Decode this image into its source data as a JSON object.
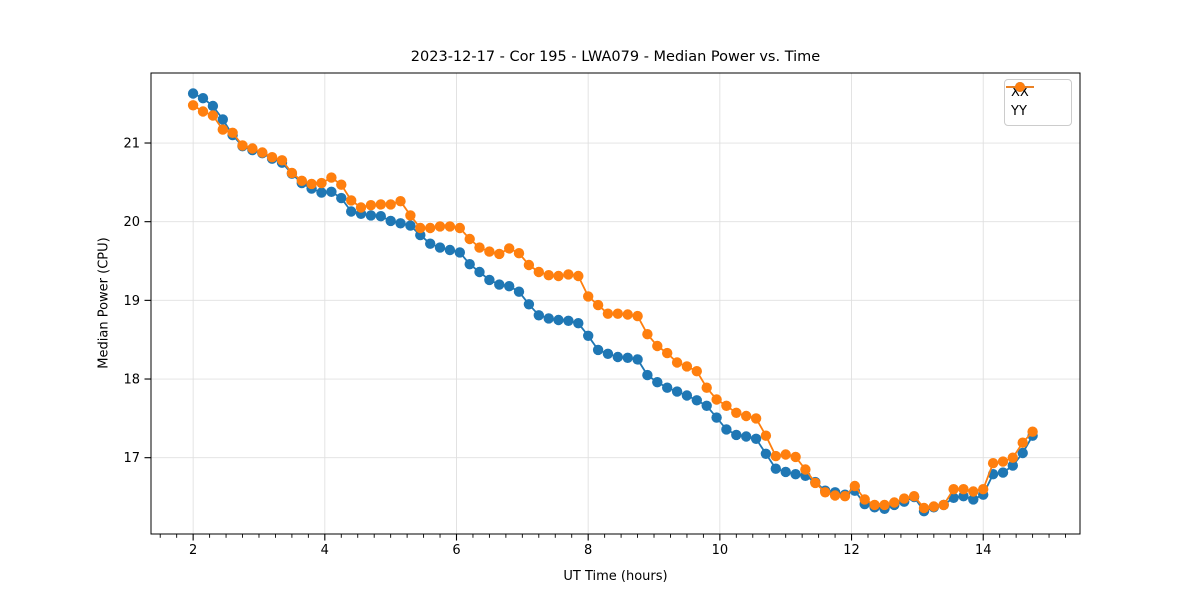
{
  "chart_data": {
    "type": "line",
    "title": "2023-12-17 - Cor 195 - LWA079 - Median Power vs. Time",
    "xlabel": "UT Time (hours)",
    "ylabel": "Median Power (CPU)",
    "xlim": [
      1.36,
      15.47
    ],
    "ylim": [
      16.03,
      21.89
    ],
    "xticks": [
      2,
      4,
      6,
      8,
      10,
      12,
      14
    ],
    "yticks": [
      17,
      18,
      19,
      20,
      21
    ],
    "x_minor_tick_step": 0.25,
    "grid": true,
    "grid_color": "#e0e0e0",
    "spine_color": "#000000",
    "legend_position": "upper right",
    "marker": "circle",
    "marker_radius": 5.2,
    "line_width": 1.8,
    "x": [
      2.0,
      2.15,
      2.3,
      2.45,
      2.6,
      2.75,
      2.9,
      3.05,
      3.2,
      3.35,
      3.5,
      3.65,
      3.8,
      3.95,
      4.1,
      4.25,
      4.4,
      4.55,
      4.7,
      4.85,
      5.0,
      5.15,
      5.3,
      5.45,
      5.6,
      5.75,
      5.9,
      6.05,
      6.2,
      6.35,
      6.5,
      6.65,
      6.8,
      6.95,
      7.1,
      7.25,
      7.4,
      7.55,
      7.7,
      7.85,
      8.0,
      8.15,
      8.3,
      8.45,
      8.6,
      8.75,
      8.9,
      9.05,
      9.2,
      9.35,
      9.5,
      9.65,
      9.8,
      9.95,
      10.1,
      10.25,
      10.4,
      10.55,
      10.7,
      10.85,
      11.0,
      11.15,
      11.3,
      11.45,
      11.6,
      11.75,
      11.9,
      12.05,
      12.2,
      12.35,
      12.5,
      12.65,
      12.8,
      12.95,
      13.1,
      13.25,
      13.4,
      13.55,
      13.7,
      13.85,
      14.0,
      14.15,
      14.3,
      14.45,
      14.6,
      14.75
    ],
    "series": [
      {
        "name": "XX",
        "color": "#1f77b4",
        "values": [
          21.63,
          21.57,
          21.47,
          21.3,
          21.1,
          20.96,
          20.91,
          20.87,
          20.8,
          20.75,
          20.61,
          20.49,
          20.42,
          20.37,
          20.38,
          20.3,
          20.13,
          20.1,
          20.08,
          20.07,
          20.01,
          19.98,
          19.95,
          19.83,
          19.72,
          19.67,
          19.64,
          19.61,
          19.46,
          19.36,
          19.26,
          19.2,
          19.18,
          19.11,
          18.95,
          18.81,
          18.77,
          18.75,
          18.74,
          18.71,
          18.55,
          18.37,
          18.32,
          18.28,
          18.27,
          18.25,
          18.05,
          17.96,
          17.89,
          17.84,
          17.79,
          17.73,
          17.66,
          17.51,
          17.36,
          17.29,
          17.27,
          17.24,
          17.05,
          16.86,
          16.82,
          16.79,
          16.77,
          16.69,
          16.58,
          16.56,
          16.53,
          16.58,
          16.41,
          16.37,
          16.35,
          16.4,
          16.44,
          16.5,
          16.32,
          16.37,
          16.4,
          16.49,
          16.51,
          16.47,
          16.53,
          16.79,
          16.81,
          16.9,
          17.06,
          17.28
        ]
      },
      {
        "name": "YY",
        "color": "#ff7f0e",
        "values": [
          21.48,
          21.4,
          21.35,
          21.17,
          21.13,
          20.97,
          20.93,
          20.88,
          20.82,
          20.78,
          20.62,
          20.52,
          20.48,
          20.49,
          20.56,
          20.47,
          20.27,
          20.18,
          20.21,
          20.22,
          20.22,
          20.26,
          20.08,
          19.92,
          19.92,
          19.94,
          19.94,
          19.92,
          19.78,
          19.67,
          19.62,
          19.59,
          19.66,
          19.6,
          19.45,
          19.36,
          19.32,
          19.31,
          19.33,
          19.31,
          19.05,
          18.94,
          18.83,
          18.83,
          18.82,
          18.8,
          18.57,
          18.42,
          18.33,
          18.21,
          18.16,
          18.1,
          17.89,
          17.74,
          17.66,
          17.57,
          17.53,
          17.5,
          17.28,
          17.02,
          17.04,
          17.01,
          16.85,
          16.68,
          16.56,
          16.52,
          16.51,
          16.64,
          16.47,
          16.4,
          16.4,
          16.43,
          16.48,
          16.51,
          16.36,
          16.38,
          16.4,
          16.6,
          16.6,
          16.57,
          16.6,
          16.93,
          16.95,
          17.0,
          17.19,
          17.33
        ]
      }
    ]
  }
}
